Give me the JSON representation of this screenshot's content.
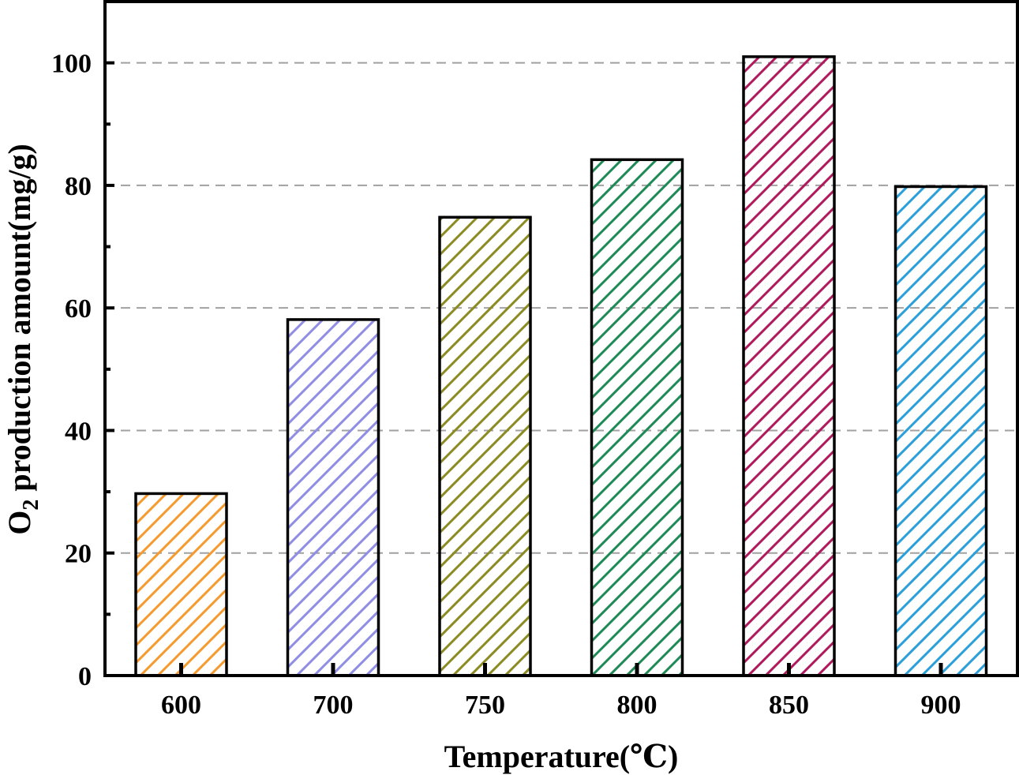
{
  "chart_data": {
    "type": "bar",
    "categories": [
      "600",
      "700",
      "750",
      "800",
      "850",
      "900"
    ],
    "values": [
      29.7,
      58.1,
      74.8,
      84.2,
      101.0,
      79.8
    ],
    "colors": [
      "#f59a2e",
      "#8f8ee4",
      "#8c8a22",
      "#1f8a55",
      "#b0195d",
      "#2a9fd8"
    ],
    "fill_pattern": "diagonal-hatch",
    "xlabel": "Temperature(℃)",
    "ylabel": "O2 production amount(mg/g)",
    "ylabel_parts": {
      "main": "O",
      "subscript": "2",
      "rest": " production amount(mg/g)"
    },
    "ylim": [
      0,
      110
    ],
    "yticks": [
      0,
      20,
      40,
      60,
      80,
      100
    ],
    "grid": "horizontal-dashed"
  }
}
